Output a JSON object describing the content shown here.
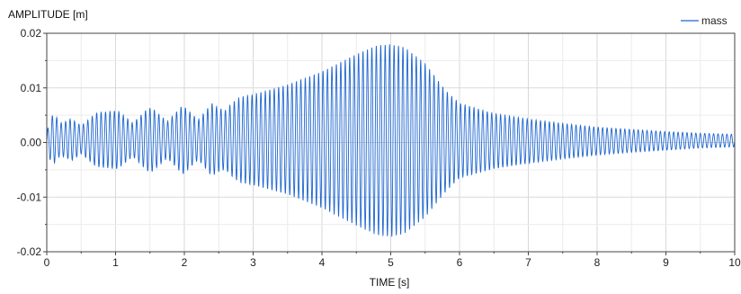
{
  "chart_data": {
    "type": "line",
    "title": "",
    "ylabel": "AMPLITUDE [m]",
    "xlabel": "TIME [s]",
    "xlim": [
      0,
      10
    ],
    "ylim": [
      -0.02,
      0.02
    ],
    "x_ticks": [
      0,
      1,
      2,
      3,
      4,
      5,
      6,
      7,
      8,
      9,
      10
    ],
    "x_tick_labels": [
      "0",
      "1",
      "2",
      "3",
      "4",
      "5",
      "6",
      "7",
      "8",
      "9",
      "10"
    ],
    "y_ticks": [
      -0.02,
      -0.01,
      0.0,
      0.01,
      0.02
    ],
    "y_tick_labels": [
      "-0.02",
      "-0.01",
      "0.00",
      "0.01",
      "0.02"
    ],
    "grid": true,
    "legend_position": "top-right",
    "series": [
      {
        "name": "mass",
        "color": "#1f66d0",
        "envelope": {
          "t": [
            0,
            0.1,
            0.3,
            0.6,
            1.0,
            1.5,
            2.0,
            2.5,
            3.0,
            3.5,
            4.0,
            4.5,
            4.8,
            5.0,
            5.2,
            5.5,
            5.8,
            6.0,
            6.5,
            7.0,
            7.5,
            8.0,
            8.5,
            9.0,
            9.5,
            10.0
          ],
          "upper": [
            0.002,
            0.007,
            0.005,
            0.0053,
            0.0058,
            0.0063,
            0.0068,
            0.0076,
            0.0088,
            0.0106,
            0.013,
            0.0162,
            0.0178,
            0.018,
            0.0175,
            0.0145,
            0.0095,
            0.0072,
            0.0053,
            0.0043,
            0.0035,
            0.0028,
            0.0024,
            0.002,
            0.0017,
            0.0015
          ],
          "lower": [
            -0.002,
            -0.0055,
            -0.004,
            -0.0043,
            -0.0048,
            -0.0053,
            -0.0058,
            -0.0066,
            -0.0078,
            -0.0095,
            -0.012,
            -0.0152,
            -0.017,
            -0.0173,
            -0.0167,
            -0.0137,
            -0.009,
            -0.0065,
            -0.0048,
            -0.0038,
            -0.003,
            -0.0023,
            -0.0018,
            -0.0014,
            -0.001,
            -0.0008
          ]
        },
        "beat_nodes_t": [
          0.2,
          0.5,
          1.25,
          1.75,
          2.2,
          2.6
        ]
      }
    ]
  }
}
